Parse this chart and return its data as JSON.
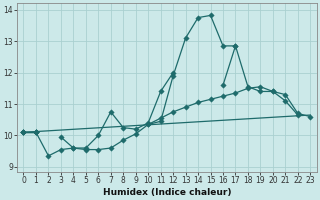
{
  "xlabel": "Humidex (Indice chaleur)",
  "bg_color": "#cce9e9",
  "grid_color": "#aad0d0",
  "line_color": "#1e6b6b",
  "xlim": [
    -0.5,
    23.5
  ],
  "ylim": [
    8.85,
    14.2
  ],
  "xticks": [
    0,
    1,
    2,
    3,
    4,
    5,
    6,
    7,
    8,
    9,
    10,
    11,
    12,
    13,
    14,
    15,
    16,
    17,
    18,
    19,
    20,
    21,
    22,
    23
  ],
  "yticks": [
    9,
    10,
    11,
    12,
    13,
    14
  ],
  "line1_y": [
    10.1,
    10.1,
    9.35,
    9.55,
    9.6,
    9.55,
    9.55,
    9.6,
    9.85,
    10.05,
    10.35,
    10.45,
    11.9,
    13.1,
    13.75,
    13.82,
    12.85,
    12.85,
    null,
    null,
    null,
    null,
    null,
    null
  ],
  "line2_y": [
    10.1,
    10.1,
    null,
    9.95,
    9.6,
    9.6,
    10.0,
    10.75,
    10.25,
    10.2,
    10.4,
    11.4,
    12.0,
    null,
    null,
    null,
    null,
    null,
    null,
    null,
    null,
    null,
    null,
    null
  ],
  "line3_y": [
    10.1,
    10.1,
    null,
    null,
    null,
    null,
    null,
    null,
    null,
    null,
    10.35,
    10.55,
    10.75,
    10.9,
    11.05,
    11.15,
    11.25,
    11.35,
    11.5,
    11.55,
    11.4,
    11.3,
    10.7,
    10.6
  ],
  "line4_y": [
    10.1,
    10.1,
    null,
    null,
    null,
    null,
    null,
    null,
    null,
    null,
    null,
    null,
    null,
    null,
    null,
    null,
    11.6,
    12.85,
    11.55,
    11.4,
    11.4,
    11.1,
    10.65,
    null
  ],
  "line5_x": [
    0,
    23
  ],
  "line5_y": [
    10.1,
    10.65
  ],
  "markersize": 2.8
}
